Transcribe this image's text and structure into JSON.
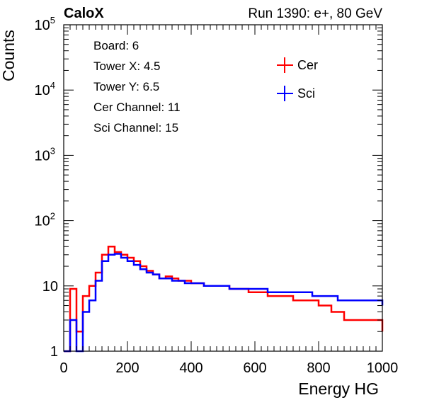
{
  "chart_data": {
    "type": "line",
    "title_left": "CaloX",
    "title_right": "Run 1390: e+, 80 GeV",
    "xlabel": "Energy HG",
    "ylabel": "Counts",
    "xlim": [
      0,
      1000
    ],
    "ylim": [
      1,
      100000
    ],
    "y_scale": "log",
    "x_ticks": [
      "0",
      "200",
      "400",
      "600",
      "800",
      "1000"
    ],
    "x_tick_values": [
      0,
      200,
      400,
      600,
      800,
      1000
    ],
    "y_ticks": [
      {
        "value": 1,
        "base": "1",
        "exp": ""
      },
      {
        "value": 10,
        "base": "10",
        "exp": ""
      },
      {
        "value": 100,
        "base": "10",
        "exp": "2"
      },
      {
        "value": 1000,
        "base": "10",
        "exp": "3"
      },
      {
        "value": 10000,
        "base": "10",
        "exp": "4"
      },
      {
        "value": 100000,
        "base": "10",
        "exp": "5"
      }
    ],
    "info_box": [
      "Board: 6",
      "Tower X: 4.5",
      "Tower Y: 6.5",
      "Cer Channel: 11",
      "Sci Channel: 15"
    ],
    "legend_position": "top-right",
    "series": [
      {
        "name": "Cer",
        "color": "#ff0000",
        "x": [
          0,
          20,
          40,
          60,
          80,
          100,
          120,
          140,
          160,
          180,
          200,
          220,
          240,
          260,
          280,
          300,
          320,
          340,
          360,
          380,
          400,
          420,
          440,
          460,
          480,
          500,
          520,
          540,
          560,
          580,
          600,
          620,
          640,
          660,
          680,
          700,
          720,
          740,
          760,
          780,
          800,
          820,
          840,
          860,
          880,
          900,
          920,
          940,
          960,
          980,
          1000
        ],
        "y": [
          1,
          9,
          2,
          7,
          10,
          16,
          30,
          40,
          33,
          30,
          27,
          24,
          20,
          17,
          15,
          13,
          14,
          13,
          12,
          12,
          11,
          11,
          10,
          10,
          10,
          10,
          9,
          9,
          9,
          8,
          8,
          8,
          7,
          7,
          7,
          7,
          6,
          6,
          6,
          6,
          5,
          5,
          4,
          4,
          3,
          3,
          3,
          3,
          3,
          3,
          2
        ]
      },
      {
        "name": "Sci",
        "color": "#0000ff",
        "x": [
          0,
          20,
          40,
          60,
          80,
          100,
          120,
          140,
          160,
          180,
          200,
          220,
          240,
          260,
          280,
          300,
          320,
          340,
          360,
          380,
          400,
          420,
          440,
          460,
          480,
          500,
          520,
          540,
          560,
          580,
          600,
          620,
          640,
          660,
          680,
          700,
          720,
          740,
          760,
          780,
          800,
          820,
          840,
          860,
          880,
          900,
          920,
          940,
          960,
          980,
          1000
        ],
        "y": [
          1,
          3,
          1,
          4,
          6,
          12,
          24,
          30,
          31,
          27,
          24,
          21,
          18,
          16,
          15,
          13,
          13,
          12,
          12,
          11,
          11,
          11,
          10,
          10,
          10,
          10,
          9,
          9,
          9,
          9,
          9,
          9,
          8,
          8,
          8,
          8,
          8,
          8,
          8,
          7,
          7,
          7,
          7,
          6,
          6,
          6,
          6,
          6,
          6,
          6,
          5
        ]
      }
    ]
  }
}
